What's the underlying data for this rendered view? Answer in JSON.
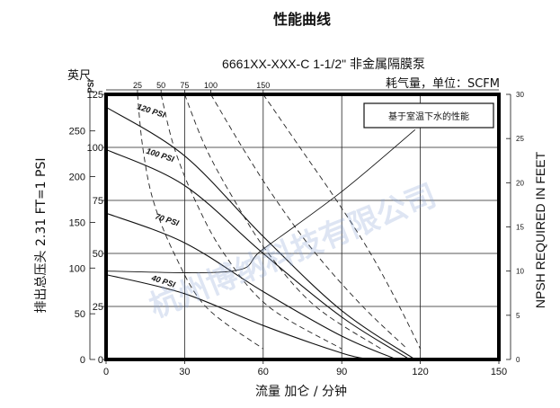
{
  "chart_data": {
    "type": "line",
    "title": "性能曲线",
    "subtitle": "6661XX-XXX-C 1-1/2\" 非金属隔膜泵",
    "air_consumption_label": "耗气量，单位：SCFM",
    "legend_box_text": "基于室温下水的性能",
    "xlabel": "流量 加仑 / 分钟",
    "ylabel_feet": "排出总压头 2.31 FT=1 PSI",
    "ylabel_feet_unit": "英尺",
    "ylabel_psi_unit": "PSI",
    "ylabel_right": "NPSH REQUIRED IN FEET",
    "xlim": [
      0,
      150
    ],
    "ylim_psi": [
      0,
      125
    ],
    "ylim_feet": [
      0,
      290
    ],
    "ylim_npsh": [
      0,
      30
    ],
    "x_ticks": [
      0,
      30,
      60,
      90,
      120,
      150
    ],
    "y_ticks_psi": [
      0,
      25,
      50,
      75,
      100,
      125
    ],
    "y_ticks_feet": [
      0,
      50,
      100,
      150,
      200,
      250
    ],
    "y_ticks_npsh": [
      0,
      5,
      10,
      15,
      20,
      25,
      30
    ],
    "top_air_ticks": [
      {
        "label": "25",
        "x": 12
      },
      {
        "label": "50",
        "x": 21
      },
      {
        "label": "75",
        "x": 30
      },
      {
        "label": "100",
        "x": 40
      },
      {
        "label": "150",
        "x": 60
      }
    ],
    "pressure_series": [
      {
        "name": "120 PSI",
        "points": [
          [
            0,
            119
          ],
          [
            30,
            96
          ],
          [
            60,
            58
          ],
          [
            90,
            23
          ],
          [
            118,
            0
          ]
        ]
      },
      {
        "name": "100 PSI",
        "points": [
          [
            0,
            99
          ],
          [
            30,
            82
          ],
          [
            60,
            50
          ],
          [
            90,
            20
          ],
          [
            116,
            0
          ]
        ]
      },
      {
        "name": "70 PSI",
        "points": [
          [
            0,
            69
          ],
          [
            30,
            55
          ],
          [
            60,
            32
          ],
          [
            90,
            11
          ],
          [
            111,
            0
          ]
        ]
      },
      {
        "name": "40 PSI",
        "points": [
          [
            0,
            40
          ],
          [
            30,
            31
          ],
          [
            60,
            16
          ],
          [
            90,
            3
          ],
          [
            101,
            0
          ]
        ]
      }
    ],
    "air_series": [
      {
        "name": "25",
        "points": [
          [
            12,
            125
          ],
          [
            14,
            100
          ],
          [
            18,
            75
          ],
          [
            26,
            50
          ],
          [
            38,
            25
          ],
          [
            60,
            5
          ]
        ]
      },
      {
        "name": "50",
        "points": [
          [
            21,
            125
          ],
          [
            26,
            100
          ],
          [
            34,
            75
          ],
          [
            45,
            50
          ],
          [
            62,
            25
          ],
          [
            90,
            5
          ]
        ]
      },
      {
        "name": "75",
        "points": [
          [
            30,
            125
          ],
          [
            38,
            100
          ],
          [
            49,
            75
          ],
          [
            62,
            50
          ],
          [
            80,
            25
          ],
          [
            105,
            5
          ]
        ]
      },
      {
        "name": "100",
        "points": [
          [
            40,
            125
          ],
          [
            52,
            100
          ],
          [
            65,
            75
          ],
          [
            80,
            50
          ],
          [
            98,
            25
          ],
          [
            115,
            5
          ]
        ]
      },
      {
        "name": "150",
        "points": [
          [
            60,
            125
          ],
          [
            74,
            100
          ],
          [
            88,
            75
          ],
          [
            101,
            50
          ],
          [
            112,
            25
          ],
          [
            120,
            5
          ]
        ]
      }
    ],
    "npsh_series": {
      "name": "NPSH",
      "label": "NPSHr",
      "points": [
        [
          0,
          10
        ],
        [
          48,
          10
        ],
        [
          60,
          12.5
        ],
        [
          90,
          19
        ],
        [
          118,
          26
        ]
      ]
    },
    "grid": true,
    "watermark": "杭州博纳科技有限公司"
  }
}
